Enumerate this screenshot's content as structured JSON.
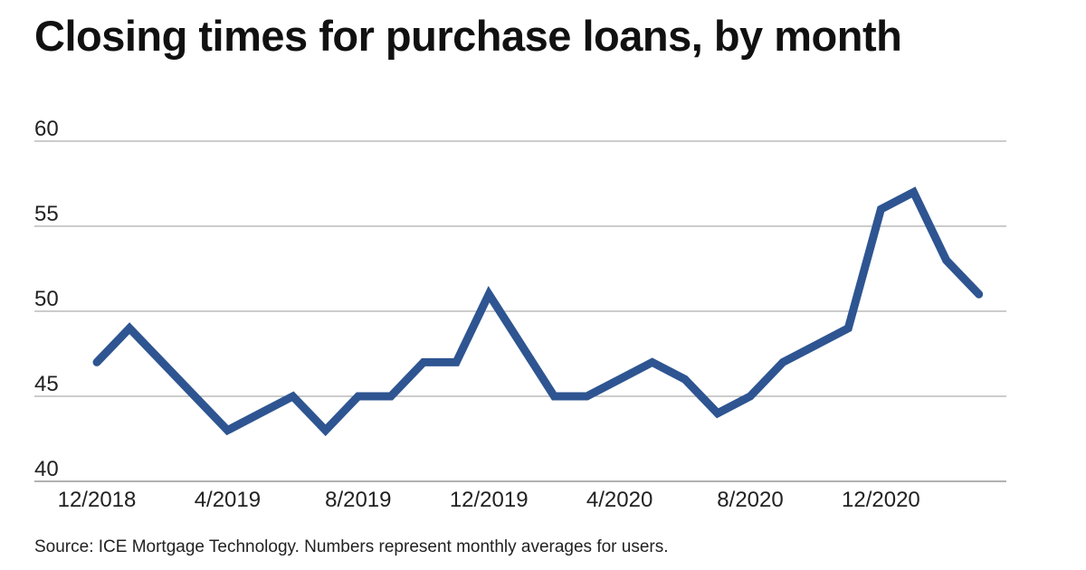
{
  "title": "Closing times for purchase loans, by month",
  "source": "Source: ICE Mortgage Technology. Numbers represent monthly averages for users.",
  "colors": {
    "line": "#2E5591",
    "grid": "#999999"
  },
  "chart_data": {
    "type": "line",
    "title": "Closing times for purchase loans, by month",
    "xlabel": "",
    "ylabel": "",
    "ylim": [
      40,
      60
    ],
    "yticks": [
      40,
      45,
      50,
      55,
      60
    ],
    "grid": true,
    "categories": [
      "12/2018",
      "1/2019",
      "2/2019",
      "3/2019",
      "4/2019",
      "5/2019",
      "6/2019",
      "7/2019",
      "8/2019",
      "9/2019",
      "10/2019",
      "11/2019",
      "12/2019",
      "1/2020",
      "2/2020",
      "3/2020",
      "4/2020",
      "5/2020",
      "6/2020",
      "7/2020",
      "8/2020",
      "9/2020",
      "10/2020",
      "11/2020",
      "12/2020",
      "1/2021",
      "2/2021",
      "3/2021"
    ],
    "xtick_labels": [
      "12/2018",
      "4/2019",
      "8/2019",
      "12/2019",
      "4/2020",
      "8/2020",
      "12/2020"
    ],
    "series": [
      {
        "values": [
          47,
          49,
          47,
          45,
          43,
          44,
          45,
          43,
          45,
          45,
          47,
          47,
          51,
          48,
          45,
          45,
          46,
          47,
          46,
          44,
          45,
          47,
          48,
          49,
          56,
          57,
          53,
          51
        ]
      }
    ]
  }
}
